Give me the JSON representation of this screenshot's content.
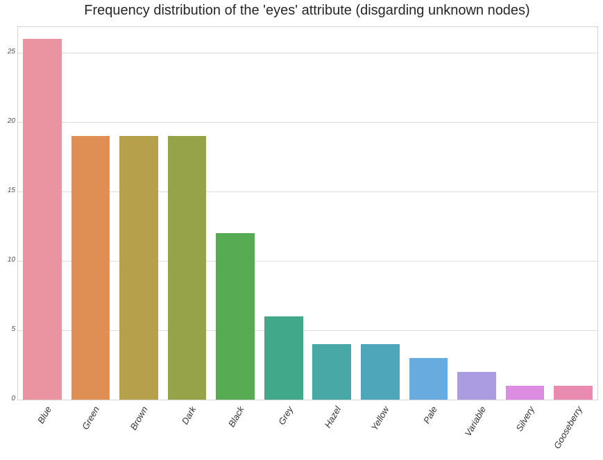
{
  "chart_data": {
    "type": "bar",
    "title": "Frequency distribution of the 'eyes' attribute (disgarding unknown nodes)",
    "categories": [
      "Blue",
      "Green",
      "Brown",
      "Dark",
      "Black",
      "Grey",
      "Hazel",
      "Yellow",
      "Pale",
      "Variable",
      "Silvery",
      "Gooseberry"
    ],
    "values": [
      26,
      19,
      19,
      19,
      12,
      6,
      4,
      4,
      3,
      2,
      1,
      1
    ],
    "bar_colors": [
      "#ea93a1",
      "#df8e54",
      "#b6a04b",
      "#97a348",
      "#57ab53",
      "#42a88a",
      "#47a8a5",
      "#4da6ba",
      "#68abde",
      "#ab9be1",
      "#dd8de1",
      "#e98bb0"
    ],
    "xlabel": "",
    "ylabel": "",
    "ylim": [
      0,
      26.85
    ],
    "yticks": [
      0,
      5,
      10,
      15,
      20,
      25
    ],
    "grid": true,
    "legend": false,
    "colors": {
      "grid": "#dcdcdc",
      "spine": "#d4d4d4",
      "tick_label": "#4d4d4d",
      "title": "#262626",
      "background": "#ffffff"
    }
  }
}
